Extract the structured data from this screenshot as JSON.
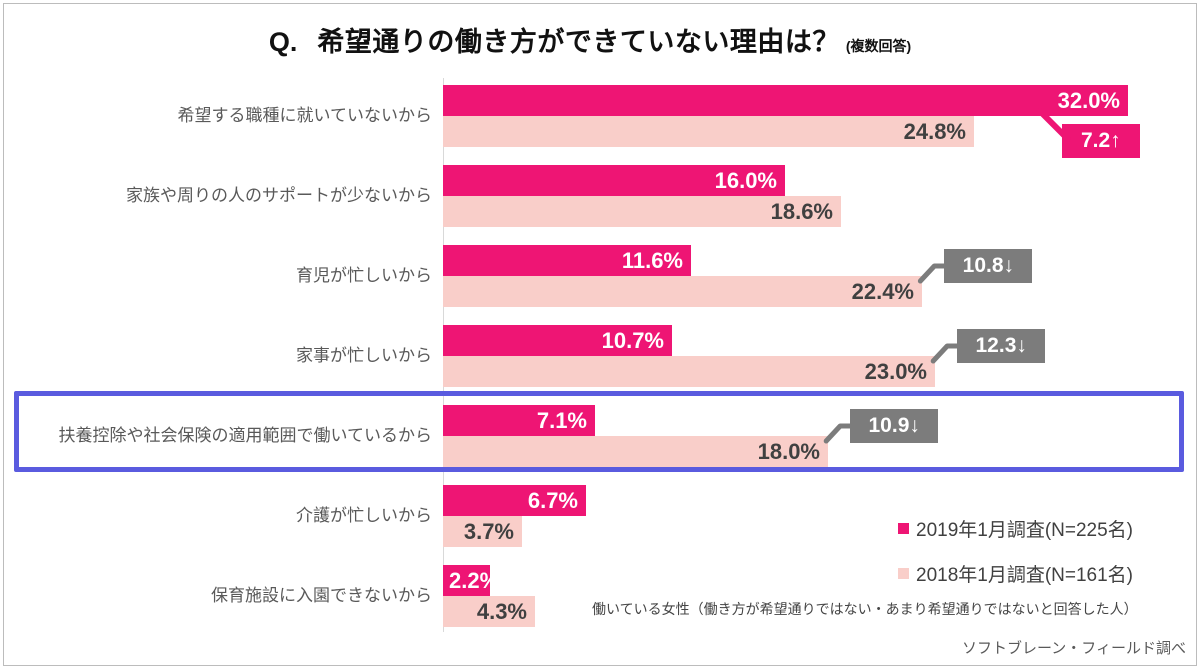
{
  "page": {
    "title_q": "Q.",
    "title_main": "希望通りの働き方ができていない理由は？",
    "title_note": "(複数回答)",
    "footnote": "働いている女性（働き方が希望通りではない・あまり希望通りではないと回答した人）",
    "source": "ソフトブレーン・フィールド調べ"
  },
  "colors": {
    "series_2019": "#ee1574",
    "series_2018": "#f9cec9",
    "badge_gray": "#7c7c7c",
    "badge_pink": "#ee1574",
    "highlight_border": "#5a5bdf",
    "value_label_dark": "#404040",
    "category_label": "#595959"
  },
  "chart_data": {
    "type": "bar",
    "orientation": "horizontal",
    "unit": "%",
    "title": "希望通りの働き方ができていない理由は？（複数回答）",
    "categories": [
      "希望する職種に就いていないから",
      "家族や周りの人のサポートが少ないから",
      "育児が忙しいから",
      "家事が忙しいから",
      "扶養控除や社会保険の適用範囲で働いているから",
      "介護が忙しいから",
      "保育施設に入園できないから"
    ],
    "series": [
      {
        "name": "2019年1月調査(N=225名)",
        "color": "#ee1574",
        "values": [
          32.0,
          16.0,
          11.6,
          10.7,
          7.1,
          6.7,
          2.2
        ]
      },
      {
        "name": "2018年1月調査(N=161名)",
        "color": "#f9cec9",
        "values": [
          24.8,
          18.6,
          22.4,
          23.0,
          18.0,
          3.7,
          4.3
        ]
      }
    ],
    "diff_badges": [
      {
        "row": 0,
        "text": "7.2↑",
        "style": "pink"
      },
      {
        "row": 2,
        "text": "10.8↓",
        "style": "gray"
      },
      {
        "row": 3,
        "text": "12.3↓",
        "style": "gray"
      },
      {
        "row": 4,
        "text": "10.9↓",
        "style": "gray"
      }
    ],
    "highlighted_row": 4,
    "xlim": [
      0,
      35
    ],
    "grid": false,
    "legend_position": "bottom-right"
  }
}
